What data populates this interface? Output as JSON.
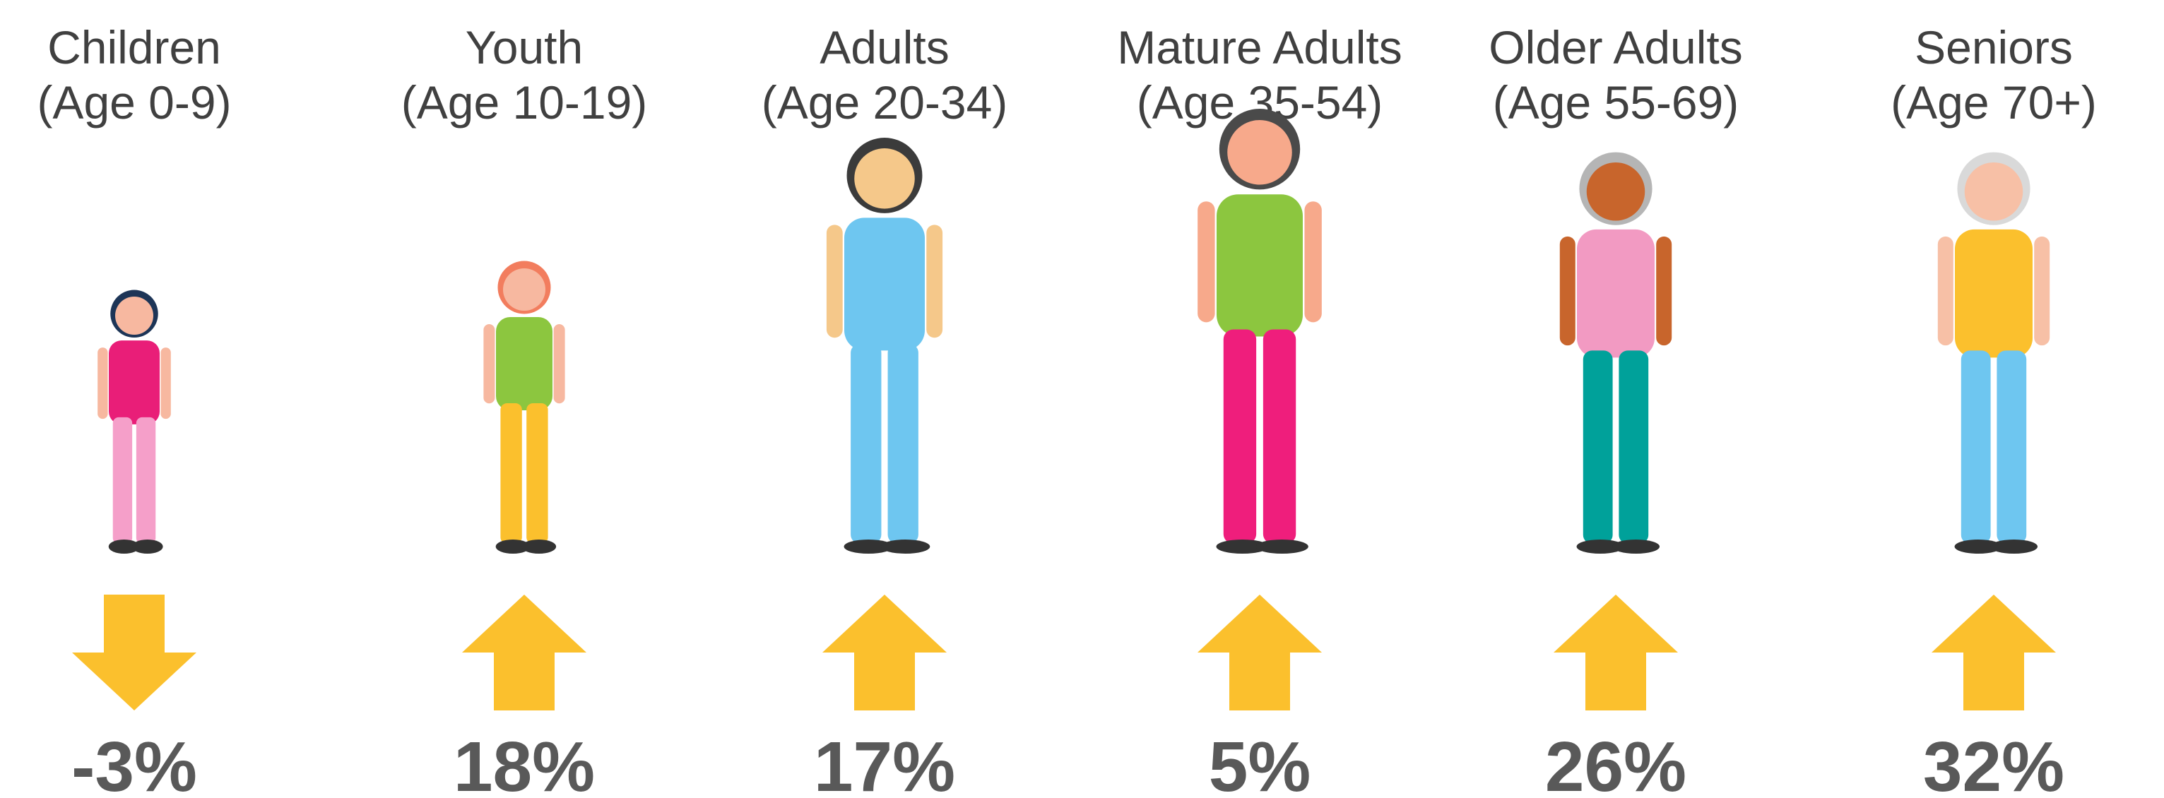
{
  "groups": [
    {
      "name": "Children",
      "age": "(Age 0-9)",
      "change": "-3%"
    },
    {
      "name": "Youth",
      "age": "(Age 10-19)",
      "change": "18%"
    },
    {
      "name": "Adults",
      "age": "(Age 20-34)",
      "change": "17%"
    },
    {
      "name": "Mature Adults",
      "age": "(Age 35-54)",
      "change": "5%"
    },
    {
      "name": "Older Adults",
      "age": "(Age 55-69)",
      "change": "26%"
    },
    {
      "name": "Seniors",
      "age": "(Age 70+)",
      "change": "32%"
    }
  ]
}
